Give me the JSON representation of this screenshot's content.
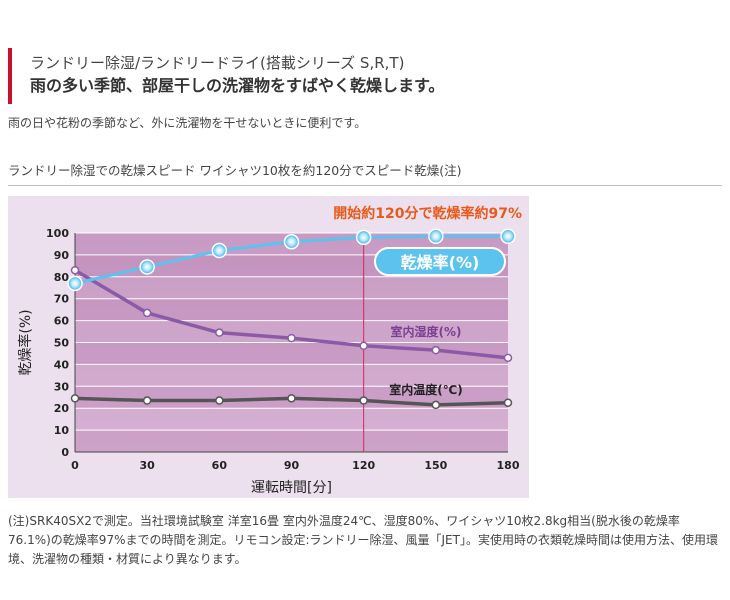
{
  "header": {
    "title": "ランドリー除湿/ランドリードライ(搭載シリーズ S,R,T)",
    "subtitle": "雨の多い季節、部屋干しの洗濯物をすばやく乾燥します。"
  },
  "intro": "雨の日や花粉の季節など、外に洗濯物を干せないときに便利です。",
  "chart_heading": "ランドリー除湿での乾燥スピード ワイシャツ10枚を約120分でスピード乾燥(注)",
  "chart_data": {
    "type": "line",
    "title": "",
    "xlabel": "運転時間[分]",
    "ylabel": "乾燥率(%)",
    "xlim": [
      0,
      180
    ],
    "ylim": [
      0,
      100
    ],
    "x_ticks": [
      0,
      30,
      60,
      90,
      120,
      150,
      180
    ],
    "y_ticks": [
      0,
      10,
      20,
      30,
      40,
      50,
      60,
      70,
      80,
      90,
      100
    ],
    "grid": true,
    "series": [
      {
        "name": "乾燥率(%)",
        "color": "#5bc3ee",
        "x": [
          0,
          30,
          60,
          90,
          120,
          150,
          180
        ],
        "y": [
          77,
          84.5,
          92,
          96,
          98,
          98.5,
          98.5
        ]
      },
      {
        "name": "室内湿度(%)",
        "color": "#8a5aa6",
        "x": [
          0,
          30,
          60,
          90,
          120,
          150,
          180
        ],
        "y": [
          83,
          63.5,
          54.5,
          52,
          48.5,
          46.5,
          43
        ]
      },
      {
        "name": "室内温度(℃)",
        "color": "#555555",
        "x": [
          0,
          30,
          60,
          90,
          120,
          150,
          180
        ],
        "y": [
          24.5,
          23.5,
          23.5,
          24.5,
          23.5,
          21.5,
          22.5
        ]
      }
    ],
    "annotation": {
      "text": "開始約120分で乾燥率約97%",
      "x": 120,
      "color": "#e85a1a"
    }
  },
  "footnote": "(注)SRK40SX2で測定。当社環境試験室 洋室16畳 室内外温度24℃、湿度80%、ワイシャツ10枚2.8kg相当(脱水後の乾燥率76.1%)の乾燥率97%までの時間を測定。リモコン設定:ランドリー除湿、風量「JET」。実使用時の衣類乾燥時間は使用方法、使用環境、洗濯物の種類・材質により異なります。"
}
